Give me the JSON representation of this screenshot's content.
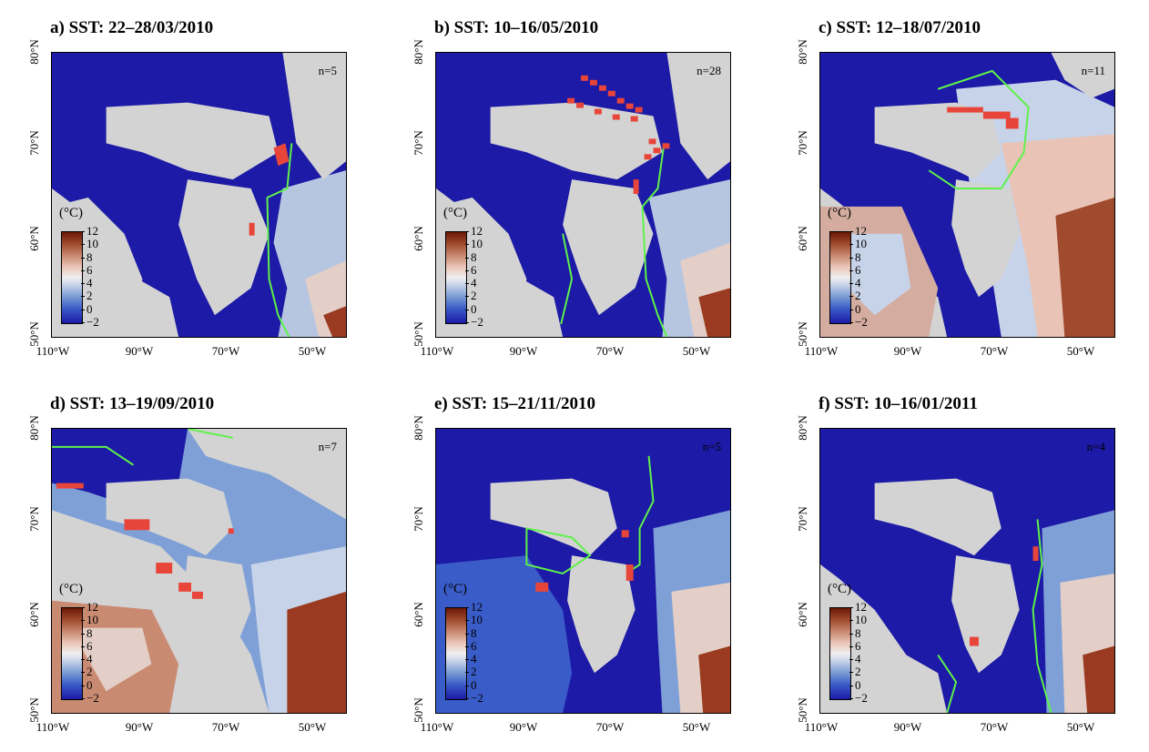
{
  "panels": [
    {
      "title": "a) SST: 22–28/03/2010",
      "n": "n=5"
    },
    {
      "title": "b) SST: 10–16/05/2010",
      "n": "n=28"
    },
    {
      "title": "c) SST: 12–18/07/2010",
      "n": "n=11"
    },
    {
      "title": "d) SST: 13–19/09/2010",
      "n": "n=7"
    },
    {
      "title": "e) SST: 15–21/11/2010",
      "n": "n=5"
    },
    {
      "title": "f) SST: 10–16/01/2011",
      "n": "n=4"
    }
  ],
  "axes": {
    "lat_labels": [
      "80°N",
      "70°N",
      "60°N",
      "50°N"
    ],
    "lon_labels": [
      "110°W",
      "90°W",
      "70°W",
      "50°W"
    ]
  },
  "colorbar": {
    "unit": "(°C)",
    "ticks": [
      "12",
      "10",
      "8",
      "6",
      "4",
      "2",
      "0",
      "−2"
    ]
  },
  "colors": {
    "cold": "#1c1aa6",
    "warm": "#8b2a10",
    "neutral": "#eeeeee",
    "land": "#d3d3d3",
    "ice_edge": "#5ef24a",
    "observations": "#e8453a"
  }
}
